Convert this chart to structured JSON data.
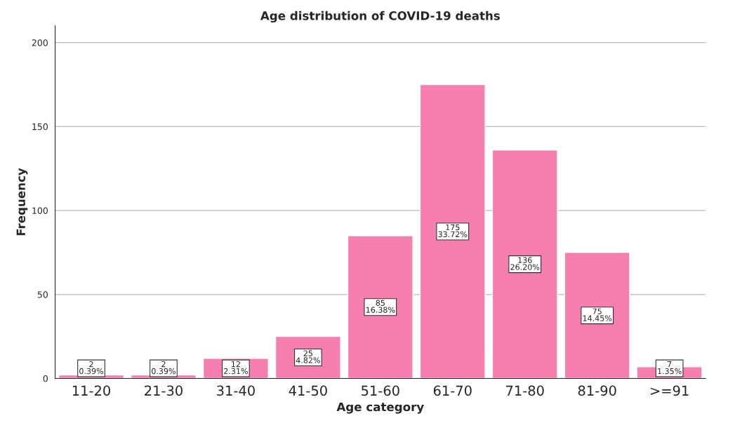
{
  "chart_data": {
    "type": "bar",
    "title": "Age distribution of COVID-19 deaths",
    "xlabel": "Age category",
    "ylabel": "Frequency",
    "categories": [
      "11-20",
      "21-30",
      "31-40",
      "41-50",
      "51-60",
      "61-70",
      "71-80",
      "81-90",
      ">=91"
    ],
    "values": [
      2,
      2,
      12,
      25,
      85,
      175,
      136,
      75,
      7
    ],
    "value_labels": [
      "2\n0.39%",
      "2\n0.39%",
      "12\n2.31%",
      "25\n4.82%",
      "85\n16.38%",
      "175\n33.72%",
      "136\n26.20%",
      "75\n14.45%",
      "7\n1.35%"
    ],
    "color": "#f77fb0",
    "ylim": [
      0,
      210
    ],
    "yticks": [
      0,
      50,
      100,
      150,
      200
    ],
    "grid": "y"
  }
}
